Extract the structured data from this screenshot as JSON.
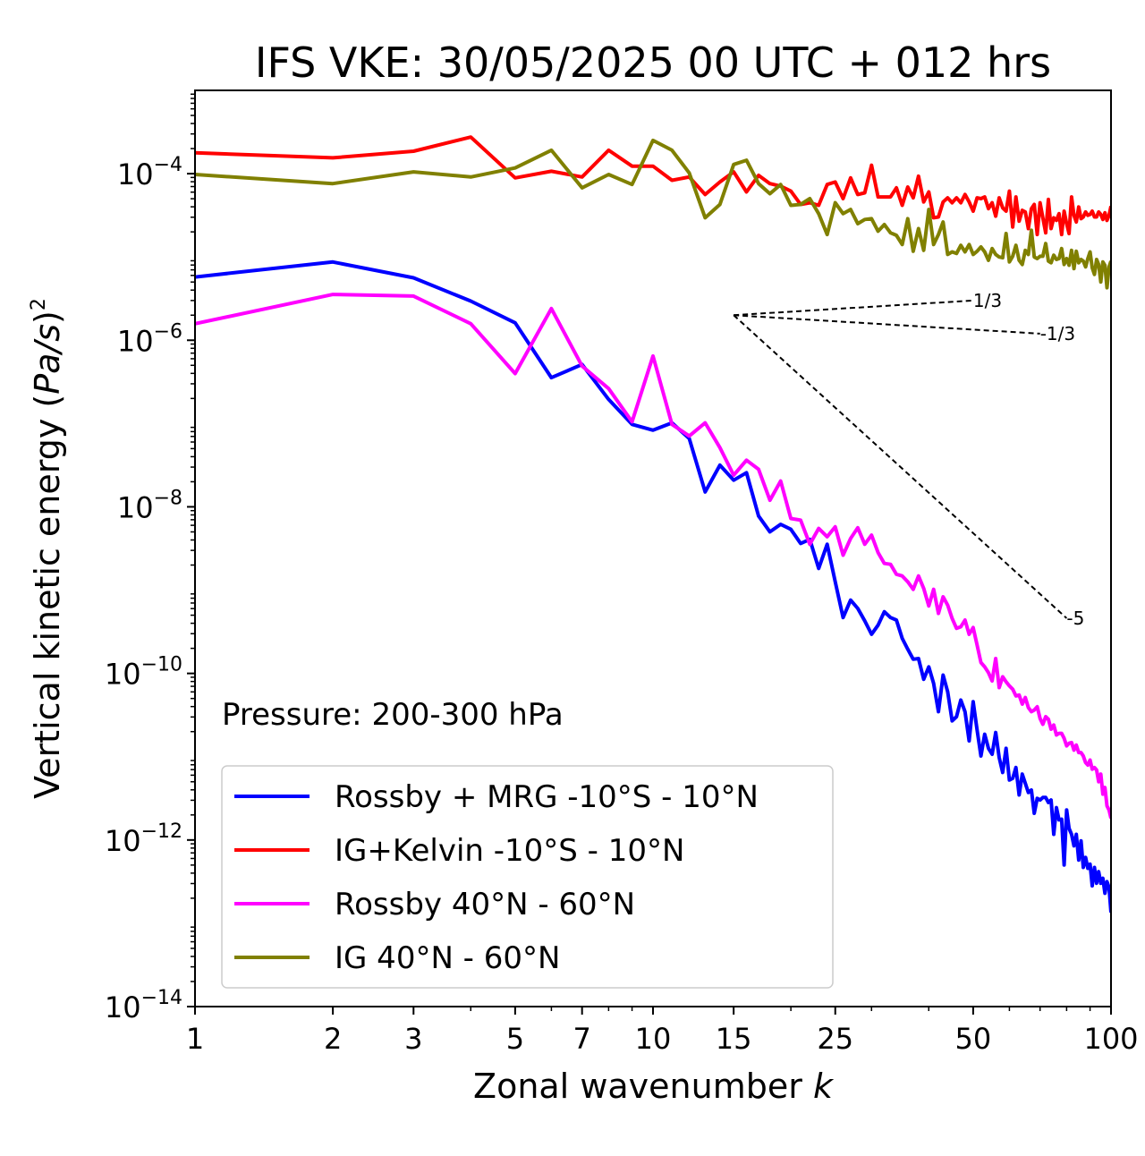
{
  "chart_data": {
    "type": "line",
    "title": "IFS VKE: 30/05/2025 00 UTC + 012 hrs",
    "xlabel": "Zonal wavenumber k",
    "ylabel": "Vertical kinetic energy (Pa/s)",
    "ylabel_parts": {
      "main": "Vertical kinetic energy (",
      "var": "Pa/s",
      "close": ")",
      "sup": "2"
    },
    "xlabel_parts": {
      "main": "Zonal wavenumber ",
      "var": "k"
    },
    "xscale": "log",
    "yscale": "log",
    "xlim": [
      1,
      100
    ],
    "ylim": [
      1e-14,
      0.001
    ],
    "x_ticks": [
      1,
      2,
      3,
      5,
      7,
      10,
      15,
      25,
      50,
      100
    ],
    "x_tick_labels": [
      "1",
      "2",
      "3",
      "5",
      "7",
      "10",
      "15",
      "25",
      "50",
      "100"
    ],
    "y_ticks": [
      1e-14,
      1e-12,
      1e-10,
      1e-08,
      1e-06,
      0.0001
    ],
    "y_tick_labels": [
      {
        "base": "10",
        "exp": "−14"
      },
      {
        "base": "10",
        "exp": "−12"
      },
      {
        "base": "10",
        "exp": "−10"
      },
      {
        "base": "10",
        "exp": "−8"
      },
      {
        "base": "10",
        "exp": "−6"
      },
      {
        "base": "10",
        "exp": "−4"
      }
    ],
    "annotation": "Pressure: 200-300 hPa",
    "legend_position": "lower-left",
    "grid": false,
    "x": [
      1,
      2,
      3,
      4,
      5,
      6,
      7,
      8,
      9,
      10,
      11,
      12,
      13,
      14,
      15,
      16,
      17,
      18,
      19,
      20,
      21,
      22,
      23,
      24,
      25,
      26,
      27,
      28,
      29,
      30,
      31,
      32,
      33,
      34,
      35,
      36,
      37,
      38,
      39,
      40,
      41,
      42,
      43,
      44,
      45,
      46,
      47,
      48,
      49,
      50,
      51,
      52,
      53,
      54,
      55,
      56,
      57,
      58,
      59,
      60,
      61,
      62,
      63,
      64,
      65,
      66,
      67,
      68,
      69,
      70,
      71,
      72,
      73,
      74,
      75,
      76,
      77,
      78,
      79,
      80,
      81,
      82,
      83,
      84,
      85,
      86,
      87,
      88,
      89,
      90,
      91,
      92,
      93,
      94,
      95,
      96,
      97,
      98,
      99,
      100
    ],
    "series": [
      {
        "name": "Rossby + MRG -10°S - 10°N",
        "color": "#0000ff",
        "values": [
          5.75e-06,
          8.71e-06,
          5.62e-06,
          2.95e-06,
          1.62e-06,
          3.55e-07,
          5.13e-07,
          1.95e-07,
          9.77e-08,
          8.32e-08,
          1.02e-07,
          6.61e-08,
          1.51e-08,
          3.16e-08,
          2.09e-08,
          2.57e-08,
          7.76e-09,
          5.01e-09,
          6.17e-09,
          5.37e-09,
          3.63e-09,
          4.07e-09,
          1.82e-09,
          3.55e-09,
          1.26e-09,
          4.68e-10,
          7.59e-10,
          6.03e-10,
          4.27e-10,
          2.95e-10,
          3.8e-10,
          5.5e-10,
          4.68e-10,
          4.37e-10,
          2.63e-10,
          1.95e-10,
          1.48e-10,
          1.51e-10,
          8.51e-11,
          1.2e-10,
          7.59e-11,
          3.47e-11,
          9.55e-11,
          6.03e-11,
          2.69e-11,
          3.02e-11,
          4.79e-11,
          3.47e-11,
          1.55e-11,
          4.57e-11,
          2.09e-11,
          1.02e-11,
          1.86e-11,
          1.26e-11,
          1.07e-11,
          1.95e-11,
          9.77e-12,
          6.46e-12,
          1.26e-11,
          5.25e-12,
          5.5e-12,
          7.41e-12,
          3.47e-12,
          6.17e-12,
          4.79e-12,
          3.72e-12,
          3.98e-12,
          2.09e-12,
          3.16e-12,
          3.02e-12,
          3.24e-12,
          3.24e-12,
          2.82e-12,
          3.02e-12,
          1.17e-12,
          2.45e-12,
          1.74e-12,
          1.78e-12,
          5.01e-13,
          2.29e-12,
          1.38e-12,
          1.17e-12,
          8.51e-13,
          1.17e-12,
          5.75e-13,
          9.77e-13,
          4.68e-13,
          6.17e-13,
          4.57e-13,
          5.13e-13,
          2.82e-13,
          4.68e-13,
          3.02e-13,
          4.17e-13,
          3.02e-13,
          3.47e-13,
          2.29e-13,
          3.16e-13,
          2.69e-13,
          1.35e-13
        ]
      },
      {
        "name": "IG+Kelvin -10°S - 10°N",
        "color": "#ff0000",
        "values": [
          0.000178,
          0.000155,
          0.000186,
          0.000275,
          8.91e-05,
          0.000107,
          9.12e-05,
          0.000191,
          0.000123,
          0.000123,
          8.32e-05,
          9.12e-05,
          5.62e-05,
          7.94e-05,
          0.000105,
          6.03e-05,
          9.55e-05,
          7.59e-05,
          7.08e-05,
          6.17e-05,
          4.27e-05,
          4.47e-05,
          4.17e-05,
          7.41e-05,
          7.94e-05,
          5.01e-05,
          8.91e-05,
          5.62e-05,
          5.89e-05,
          0.000126,
          5.25e-05,
          5.25e-05,
          5.25e-05,
          6.76e-05,
          4.17e-05,
          6.92e-05,
          5.13e-05,
          9.33e-05,
          4.57e-05,
          6.03e-05,
          2.95e-05,
          3.02e-05,
          4.57e-05,
          5.13e-05,
          4.47e-05,
          5.13e-05,
          4.47e-05,
          5.62e-05,
          4.57e-05,
          3.55e-05,
          5.13e-05,
          5.01e-05,
          5.25e-05,
          3.8e-05,
          4.47e-05,
          3.09e-05,
          5.13e-05,
          3.89e-05,
          3.55e-05,
          6.17e-05,
          2.29e-05,
          5.25e-05,
          2.69e-05,
          3.63e-05,
          3.47e-05,
          2.19e-05,
          3.8e-05,
          4.27e-05,
          1.86e-05,
          4.47e-05,
          2.95e-05,
          1.95e-05,
          4.9e-05,
          2.19e-05,
          2.95e-05,
          2.75e-05,
          3.31e-05,
          1.86e-05,
          3.55e-05,
          2.51e-05,
          1.91e-05,
          5.25e-05,
          3.16e-05,
          2.63e-05,
          3.98e-05,
          2.88e-05,
          3.02e-05,
          3.47e-05,
          3.16e-05,
          3.24e-05,
          3.55e-05,
          3.02e-05,
          3.02e-05,
          3.47e-05,
          3.24e-05,
          2.82e-05,
          3.39e-05,
          2.75e-05,
          3.16e-05,
          4.07e-05
        ]
      },
      {
        "name": "Rossby 40°N - 60°N",
        "color": "#ff00ff",
        "values": [
          1.58e-06,
          3.55e-06,
          3.39e-06,
          1.58e-06,
          3.98e-07,
          2.4e-06,
          4.9e-07,
          2.63e-07,
          1.05e-07,
          6.46e-07,
          9.77e-08,
          7.08e-08,
          1.02e-07,
          5.13e-08,
          2.4e-08,
          3.63e-08,
          2.82e-08,
          1.2e-08,
          2.04e-08,
          7.24e-09,
          6.92e-09,
          3.55e-09,
          5.5e-09,
          4.37e-09,
          5.75e-09,
          2.63e-09,
          4.17e-09,
          5.62e-09,
          3.55e-09,
          4.57e-09,
          2.82e-09,
          2.09e-09,
          2.04e-09,
          1.55e-09,
          1.48e-09,
          1.26e-09,
          1.02e-09,
          1.48e-09,
          1.05e-09,
          6.46e-10,
          1.02e-09,
          5.25e-10,
          8.32e-10,
          6.61e-10,
          4.57e-10,
          3.47e-10,
          3.63e-10,
          4.37e-10,
          2.95e-10,
          3.55e-10,
          2.19e-10,
          1.35e-10,
          1.2e-10,
          1.02e-10,
          8.13e-11,
          1.51e-10,
          6.76e-11,
          9.12e-11,
          7.94e-11,
          7.08e-11,
          6.46e-11,
          5.37e-11,
          5.5e-11,
          4.27e-11,
          5.13e-11,
          3.89e-11,
          3.47e-11,
          3.63e-11,
          3.98e-11,
          2.88e-11,
          2.45e-11,
          3.02e-11,
          2.82e-11,
          2.14e-11,
          2.4e-11,
          1.82e-11,
          1.91e-11,
          1.91e-11,
          1.66e-11,
          1.35e-11,
          1.45e-11,
          1.48e-11,
          1.2e-11,
          1.38e-11,
          1.12e-11,
          1.12e-11,
          1.02e-11,
          8.51e-12,
          7.94e-12,
          9.12e-12,
          7.08e-12,
          7.41e-12,
          6.92e-12,
          5.01e-12,
          6.17e-12,
          3.55e-12,
          4.27e-12,
          2.57e-12,
          2.29e-12,
          1.82e-12
        ]
      },
      {
        "name": "IG 40°N - 60°N",
        "color": "#808000",
        "values": [
          9.77e-05,
          7.59e-05,
          0.000105,
          9.12e-05,
          0.000117,
          0.000191,
          6.76e-05,
          9.77e-05,
          7.41e-05,
          0.000251,
          0.000191,
          0.000102,
          2.95e-05,
          4.27e-05,
          0.000129,
          0.000145,
          7.59e-05,
          5.75e-05,
          7.41e-05,
          4.17e-05,
          4.27e-05,
          5.01e-05,
          3.31e-05,
          1.86e-05,
          4.47e-05,
          3.31e-05,
          3.72e-05,
          2.51e-05,
          2.82e-05,
          2.88e-05,
          2.04e-05,
          2.45e-05,
          1.95e-05,
          1.82e-05,
          1.41e-05,
          2.88e-05,
          1.17e-05,
          2.19e-05,
          1.2e-05,
          3.72e-05,
          1.41e-05,
          1.86e-05,
          2.63e-05,
          1.07e-05,
          1.15e-05,
          1.1e-05,
          1.38e-05,
          1.15e-05,
          1.41e-05,
          1.07e-05,
          1.17e-05,
          1.32e-05,
          1.15e-05,
          9.12e-06,
          1.26e-05,
          1.07e-05,
          1e-05,
          9.77e-06,
          1.91e-05,
          8.71e-06,
          1.02e-05,
          1.38e-05,
          9.12e-06,
          8.13e-06,
          1.2e-05,
          1.07e-05,
          2.09e-05,
          1e-05,
          9.55e-06,
          1.02e-05,
          1.02e-05,
          1.45e-05,
          8.91e-06,
          8.51e-06,
          1.05e-05,
          9.33e-06,
          9.55e-06,
          1.26e-05,
          8.13e-06,
          9.55e-06,
          7.94e-06,
          1.2e-05,
          7.24e-06,
          1.17e-05,
          8.51e-06,
          9.33e-06,
          8.91e-06,
          7.59e-06,
          9.55e-06,
          1.15e-05,
          7.41e-06,
          6.17e-06,
          9.33e-06,
          8.13e-06,
          5.01e-06,
          8.71e-06,
          7.94e-06,
          4.27e-06,
          7.59e-06,
          8.91e-06
        ]
      }
    ],
    "reference_slopes": [
      {
        "label": "1/3",
        "x": [
          15,
          50
        ],
        "y": [
          2e-06,
          3e-06
        ]
      },
      {
        "label": "-1/3",
        "x": [
          15,
          70
        ],
        "y": [
          2e-06,
          1.2e-06
        ]
      },
      {
        "label": "-5",
        "x": [
          15,
          80
        ],
        "y": [
          2e-06,
          4.6e-10
        ]
      }
    ]
  }
}
